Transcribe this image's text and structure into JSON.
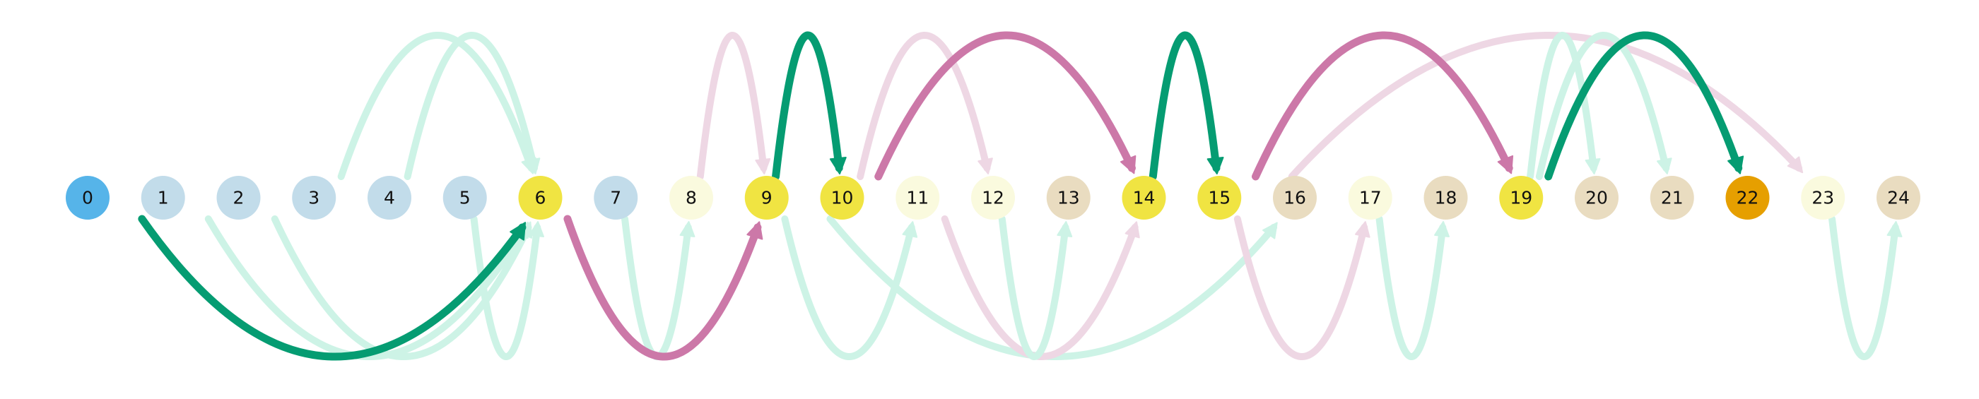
{
  "colors": {
    "background": "#ffffff",
    "green": "#059c72",
    "pink": "#cc78a8",
    "green_faint": "#cdf3e6",
    "pink_faint": "#eed7e4"
  },
  "nodes": [
    {
      "label": "0",
      "fill": "#56b4e9"
    },
    {
      "label": "1",
      "fill": "#c2dcea"
    },
    {
      "label": "2",
      "fill": "#c2dcea"
    },
    {
      "label": "3",
      "fill": "#c2dcea"
    },
    {
      "label": "4",
      "fill": "#c2dcea"
    },
    {
      "label": "5",
      "fill": "#c2dcea"
    },
    {
      "label": "6",
      "fill": "#f0e442"
    },
    {
      "label": "7",
      "fill": "#c2dcea"
    },
    {
      "label": "8",
      "fill": "#fafade"
    },
    {
      "label": "9",
      "fill": "#f0e442"
    },
    {
      "label": "10",
      "fill": "#f0e442"
    },
    {
      "label": "11",
      "fill": "#fafade"
    },
    {
      "label": "12",
      "fill": "#fafade"
    },
    {
      "label": "13",
      "fill": "#e9dcc0"
    },
    {
      "label": "14",
      "fill": "#f0e442"
    },
    {
      "label": "15",
      "fill": "#f0e442"
    },
    {
      "label": "16",
      "fill": "#e9dcc0"
    },
    {
      "label": "17",
      "fill": "#fafade"
    },
    {
      "label": "18",
      "fill": "#e9dcc0"
    },
    {
      "label": "19",
      "fill": "#f0e442"
    },
    {
      "label": "20",
      "fill": "#e9dcc0"
    },
    {
      "label": "21",
      "fill": "#e9dcc0"
    },
    {
      "label": "22",
      "fill": "#e69f00"
    },
    {
      "label": "23",
      "fill": "#fafade"
    },
    {
      "label": "24",
      "fill": "#e9dcc0"
    }
  ],
  "edges": [
    {
      "from": 3,
      "to": 6,
      "side": "top",
      "style": "green_faint"
    },
    {
      "from": 4,
      "to": 6,
      "side": "top",
      "style": "green_faint"
    },
    {
      "from": 8,
      "to": 9,
      "side": "top",
      "style": "pink_faint"
    },
    {
      "from": 10,
      "to": 12,
      "side": "top",
      "style": "pink_faint"
    },
    {
      "from": 15,
      "to": 23,
      "side": "top",
      "style": "pink_faint"
    },
    {
      "from": 19,
      "to": 20,
      "side": "top",
      "style": "green_faint"
    },
    {
      "from": 19,
      "to": 21,
      "side": "top",
      "style": "green_faint"
    },
    {
      "from": 1,
      "to": 6,
      "side": "bottom",
      "style": "green_faint"
    },
    {
      "from": 2,
      "to": 6,
      "side": "bottom",
      "style": "green_faint"
    },
    {
      "from": 5,
      "to": 6,
      "side": "bottom",
      "style": "green_faint"
    },
    {
      "from": 7,
      "to": 8,
      "side": "bottom",
      "style": "green_faint"
    },
    {
      "from": 9,
      "to": 11,
      "side": "bottom",
      "style": "green_faint"
    },
    {
      "from": 9,
      "to": 16,
      "side": "bottom",
      "style": "green_faint"
    },
    {
      "from": 11,
      "to": 14,
      "side": "bottom",
      "style": "pink_faint"
    },
    {
      "from": 12,
      "to": 13,
      "side": "bottom",
      "style": "green_faint"
    },
    {
      "from": 15,
      "to": 17,
      "side": "bottom",
      "style": "pink_faint"
    },
    {
      "from": 17,
      "to": 18,
      "side": "bottom",
      "style": "green_faint"
    },
    {
      "from": 23,
      "to": 24,
      "side": "bottom",
      "style": "green_faint"
    },
    {
      "from": 0,
      "to": 6,
      "side": "bottom",
      "style": "green"
    },
    {
      "from": 6,
      "to": 9,
      "side": "bottom",
      "style": "pink"
    },
    {
      "from": 9,
      "to": 10,
      "side": "top",
      "style": "green"
    },
    {
      "from": 10,
      "to": 14,
      "side": "top",
      "style": "pink"
    },
    {
      "from": 14,
      "to": 15,
      "side": "top",
      "style": "green"
    },
    {
      "from": 15,
      "to": 19,
      "side": "top",
      "style": "pink"
    },
    {
      "from": 19,
      "to": 22,
      "side": "top",
      "style": "green"
    }
  ]
}
